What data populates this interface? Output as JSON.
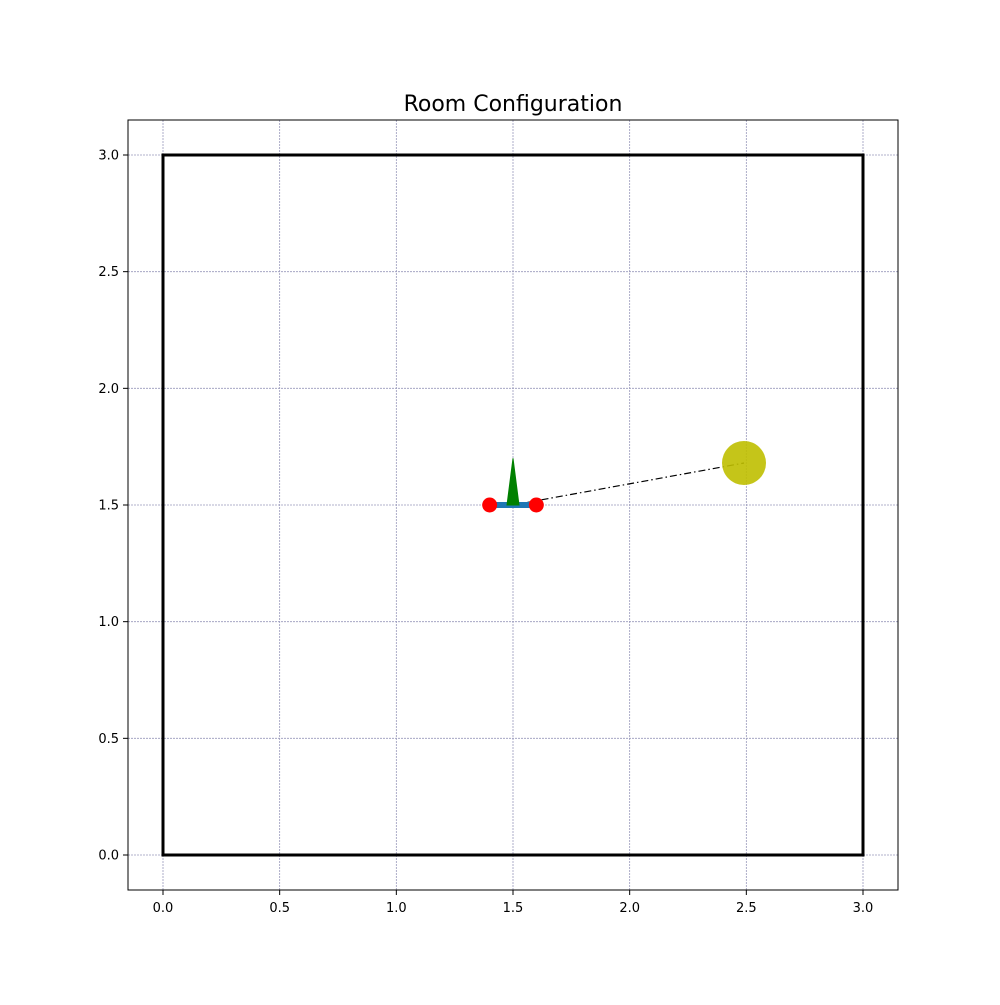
{
  "chart_data": {
    "type": "scatter",
    "title": "Room Configuration",
    "xlabel": "",
    "ylabel": "",
    "xlim": [
      -0.15,
      3.15
    ],
    "ylim": [
      -0.15,
      3.15
    ],
    "x_ticks": [
      "0.0",
      "0.5",
      "1.0",
      "1.5",
      "2.0",
      "2.5",
      "3.0"
    ],
    "y_ticks": [
      "0.0",
      "0.5",
      "1.0",
      "1.5",
      "2.0",
      "2.5",
      "3.0"
    ],
    "grid": true,
    "legend": "none",
    "room_walls": [
      [
        0,
        0
      ],
      [
        3,
        0
      ],
      [
        3,
        3
      ],
      [
        0,
        3
      ]
    ],
    "robot": {
      "center": [
        1.5,
        1.5
      ],
      "wheel_points": [
        [
          1.4,
          1.5
        ],
        [
          1.6,
          1.5
        ]
      ],
      "heading_tip": [
        1.5,
        1.7
      ]
    },
    "target": {
      "center": [
        2.49,
        1.68
      ],
      "radius": 0.08
    },
    "link_line": [
      [
        1.5,
        1.5
      ],
      [
        2.49,
        1.68
      ]
    ]
  },
  "colors": {
    "wall": "#000000",
    "grid": "#9999bb",
    "robot_body": "#1f77b4",
    "wheel": "#ff0000",
    "heading": "#008000",
    "target": "#bfbf00",
    "link": "#000000"
  }
}
